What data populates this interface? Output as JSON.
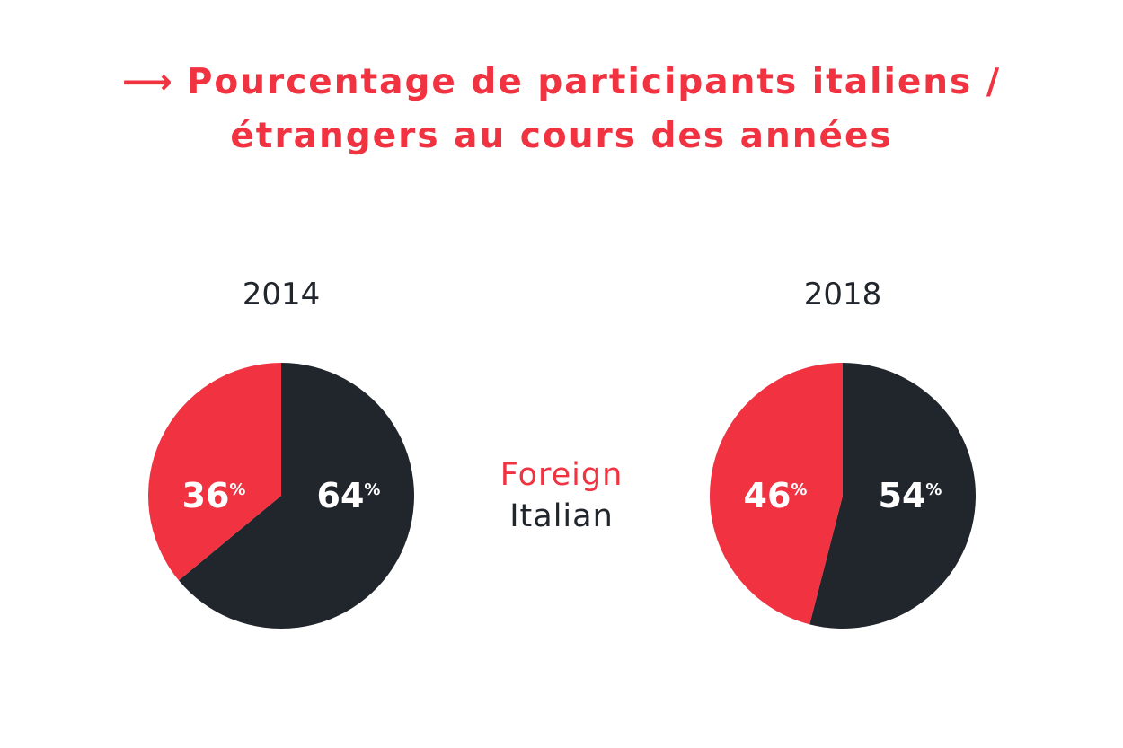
{
  "header": {
    "arrow": "⟶",
    "title_line1": "Pourcentage de participants italiens /",
    "title_line2": "étrangers au cours des années"
  },
  "colors": {
    "foreign": "#f03241",
    "italian": "#21262d",
    "title": "#f03241",
    "label": "#ffffff",
    "background": "#ffffff"
  },
  "legend": {
    "foreign": "Foreign",
    "italian": "Italian"
  },
  "chart_data": [
    {
      "type": "pie",
      "title": "2014",
      "series": [
        {
          "name": "Italian",
          "value": 64,
          "label": "64"
        },
        {
          "name": "Foreign",
          "value": 36,
          "label": "36"
        }
      ],
      "unit": "%"
    },
    {
      "type": "pie",
      "title": "2018",
      "series": [
        {
          "name": "Italian",
          "value": 54,
          "label": "54"
        },
        {
          "name": "Foreign",
          "value": 46,
          "label": "46"
        }
      ],
      "unit": "%"
    }
  ]
}
